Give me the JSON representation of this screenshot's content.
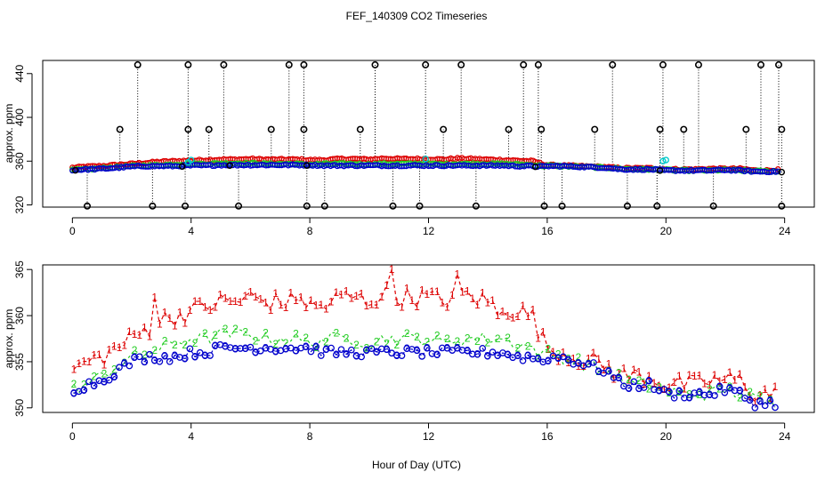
{
  "title": "FEF_140309  CO2 Timeseries",
  "xlabel": "Hour of Day (UTC)",
  "colors": {
    "series1": "#dd0000",
    "series2": "#22cc22",
    "series3": "#0000cc",
    "flag": "#000000",
    "cyan": "#00cccc",
    "axis": "#000000"
  },
  "chart_data": [
    {
      "type": "scatter",
      "name": "overview",
      "ylabel": "approx. ppm",
      "xlim": [
        -1,
        25
      ],
      "ylim": [
        318,
        452
      ],
      "xticks": [
        0,
        4,
        8,
        12,
        16,
        20,
        24
      ],
      "yticks": [
        320,
        360,
        400,
        440
      ],
      "upper_flag_y": 448,
      "mid_flag_y": 389,
      "lower_flag_y": 319,
      "upper_flags": [
        2.2,
        3.9,
        5.1,
        7.3,
        7.8,
        10.2,
        11.9,
        13.1,
        15.2,
        15.7,
        18.2,
        19.9,
        21.1,
        23.2,
        23.8
      ],
      "mid_flags": [
        1.6,
        3.9,
        4.6,
        6.7,
        7.8,
        9.7,
        12.5,
        14.7,
        15.8,
        17.6,
        19.8,
        20.6,
        22.7,
        23.9
      ],
      "lower_flags": [
        0.5,
        2.7,
        3.8,
        5.6,
        7.9,
        8.5,
        10.8,
        11.7,
        13.6,
        15.9,
        16.5,
        18.7,
        19.7,
        21.6,
        23.9
      ],
      "cyan_points": [
        [
          3.9,
          359
        ],
        [
          4.0,
          361
        ],
        [
          11.9,
          362
        ],
        [
          19.9,
          360
        ],
        [
          20.0,
          361
        ]
      ]
    },
    {
      "type": "line",
      "name": "detail",
      "ylabel": "approx. ppm",
      "xlim": [
        -1,
        25
      ],
      "ylim": [
        349.5,
        365.5
      ],
      "xticks": [
        0,
        4,
        8,
        12,
        16,
        20,
        24
      ],
      "yticks": [
        350,
        355,
        360,
        365
      ],
      "anchors": {
        "x": [
          0.0,
          0.5,
          1.0,
          1.5,
          2.0,
          2.5,
          3.0,
          3.5,
          4.0,
          4.5,
          5.0,
          5.5,
          6.0,
          6.5,
          7.0,
          7.5,
          8.0,
          8.5,
          9.0,
          9.5,
          10.0,
          10.5,
          11.0,
          11.5,
          12.0,
          12.5,
          13.0,
          13.5,
          14.0,
          14.5,
          15.0,
          15.5,
          15.9,
          16.0,
          16.5,
          17.0,
          17.5,
          18.0,
          18.5,
          19.0,
          19.5,
          20.0,
          20.5,
          21.0,
          21.5,
          22.0,
          22.5,
          23.0,
          23.5,
          23.8
        ],
        "s1": [
          354.0,
          355.0,
          355.5,
          356.5,
          357.5,
          358.5,
          359.5,
          360.0,
          360.5,
          361.0,
          361.5,
          361.5,
          362.0,
          361.5,
          361.5,
          361.5,
          361.0,
          361.0,
          362.0,
          362.0,
          361.5,
          362.5,
          362.0,
          362.0,
          362.0,
          361.5,
          362.5,
          362.0,
          361.5,
          361.0,
          360.5,
          360.0,
          357.0,
          356.5,
          356.0,
          355.5,
          355.0,
          354.5,
          353.5,
          353.5,
          353.5,
          352.5,
          352.5,
          352.5,
          353.0,
          353.0,
          353.0,
          351.5,
          351.5,
          352.0
        ],
        "s2": [
          352.0,
          352.5,
          353.5,
          354.5,
          355.5,
          356.0,
          356.5,
          357.0,
          357.5,
          357.5,
          358.0,
          358.0,
          358.0,
          357.5,
          357.5,
          357.5,
          357.0,
          357.5,
          357.5,
          357.5,
          357.0,
          357.5,
          357.5,
          357.5,
          357.5,
          357.0,
          357.5,
          357.5,
          357.5,
          357.5,
          357.0,
          356.5,
          355.5,
          356.0,
          355.5,
          355.0,
          354.5,
          354.0,
          353.0,
          352.5,
          352.5,
          352.0,
          351.5,
          351.5,
          351.5,
          352.0,
          351.5,
          351.0,
          350.5,
          350.5
        ],
        "s3": [
          352.0,
          352.5,
          353.0,
          354.0,
          355.0,
          355.5,
          355.5,
          355.5,
          356.0,
          356.0,
          356.5,
          356.5,
          356.5,
          356.5,
          356.5,
          356.5,
          356.5,
          356.0,
          356.0,
          356.0,
          356.0,
          356.0,
          356.0,
          356.0,
          356.0,
          356.0,
          356.0,
          356.0,
          356.0,
          356.0,
          355.5,
          355.5,
          355.0,
          355.5,
          355.5,
          355.0,
          354.5,
          354.0,
          352.5,
          352.5,
          352.5,
          351.5,
          351.5,
          351.5,
          351.5,
          352.0,
          351.5,
          350.5,
          350.5,
          350.5
        ]
      },
      "spikes": [
        [
          2.7,
          362.0
        ],
        [
          7.7,
          362.0
        ],
        [
          10.7,
          365.0
        ],
        [
          13.0,
          364.5
        ],
        [
          14.3,
          360.0
        ]
      ],
      "s1_label": "1",
      "s2_label": "2",
      "s3_label": "3"
    }
  ]
}
